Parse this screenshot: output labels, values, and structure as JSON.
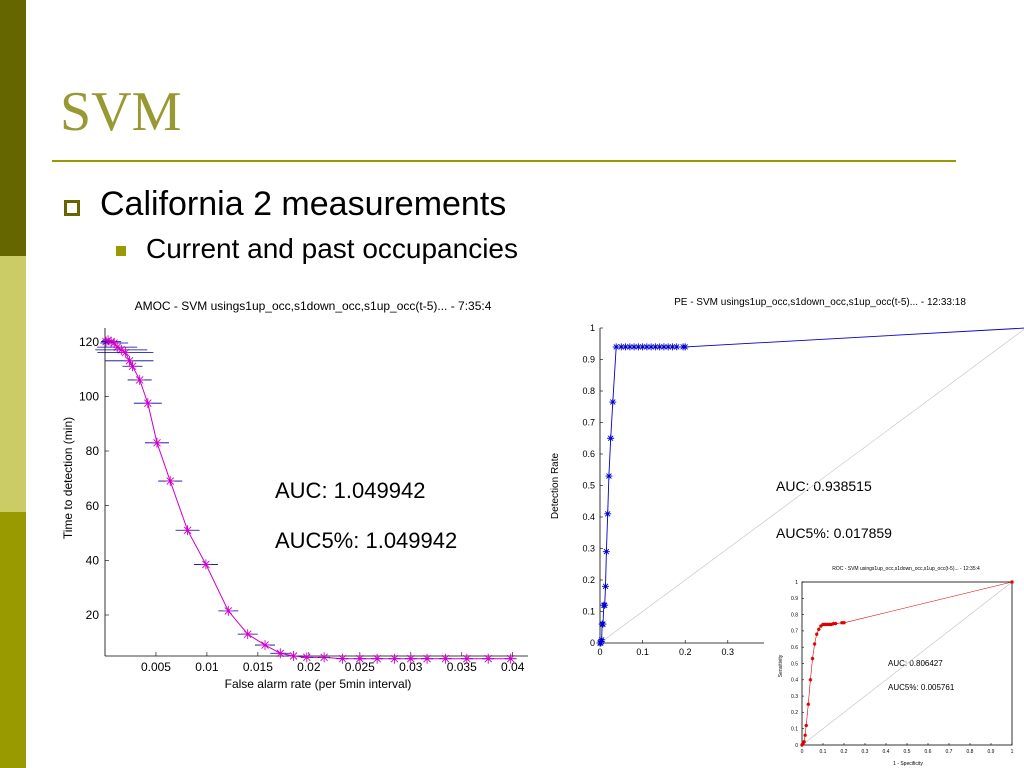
{
  "slide": {
    "title": "SVM",
    "bullet1": "California 2 measurements",
    "bullet2": "Current and past occupancies",
    "colors": {
      "title": "#999933",
      "rule": "#999900",
      "sidebar_top": "#666600",
      "sidebar_mid": "#cccc66",
      "sidebar_bot": "#999900"
    }
  },
  "chart_data": [
    {
      "type": "line",
      "title": "AMOC - SVM usings1up_occ,s1down_occ,s1up_occ(t-5)... - 7:35:4",
      "xlabel": "False alarm rate (per 5min interval)",
      "ylabel": "Time to detection (min)",
      "xticks": [
        "0.005",
        "0.01",
        "0.015",
        "0.02",
        "0.025",
        "0.03",
        "0.035",
        "0.04"
      ],
      "yticks": [
        "20",
        "40",
        "60",
        "80",
        "100",
        "120"
      ],
      "xlim": [
        0,
        0.0415
      ],
      "ylim": [
        5,
        125
      ],
      "color": "#cc00cc",
      "errcolor": "#000099",
      "annotations": [
        "AUC: 1.049942",
        "AUC5%: 1.049942"
      ],
      "series": [
        {
          "x": [
            0.0001,
            0.0003,
            0.0006,
            0.0009,
            0.0012,
            0.0016,
            0.002,
            0.0024,
            0.0027,
            0.0034,
            0.0042,
            0.0051,
            0.0064,
            0.0081,
            0.0099,
            0.0121,
            0.014,
            0.0157,
            0.0172,
            0.0185,
            0.0198,
            0.0215,
            0.0233,
            0.025,
            0.0267,
            0.0284,
            0.03,
            0.0316,
            0.0334,
            0.0355,
            0.0376,
            0.0398
          ],
          "y": [
            120,
            120.5,
            120,
            119.5,
            118,
            117,
            116,
            113,
            111,
            106,
            97.5,
            83,
            69,
            51,
            38.5,
            21.5,
            13,
            9,
            6,
            5,
            4.5,
            4.5,
            4,
            4,
            4,
            4,
            4,
            4,
            4,
            4,
            4,
            4
          ]
        }
      ]
    },
    {
      "type": "line",
      "title": "PE - SVM usings1up_occ,s1down_occ,s1up_occ(t-5)... - 12:33:18",
      "xlabel": "",
      "ylabel": "Detection Rate",
      "xticks": [
        "0",
        "0.1",
        "0.2",
        "0.3"
      ],
      "yticks": [
        "0",
        "0.1",
        "0.2",
        "0.3",
        "0.4",
        "0.5",
        "0.6",
        "0.7",
        "0.8",
        "0.9",
        "1"
      ],
      "xlim": [
        0,
        1
      ],
      "ylim": [
        0,
        1
      ],
      "color": "#0000cc",
      "annotations": [
        "AUC: 0.938515",
        "AUC5%: 0.017859"
      ],
      "series": [
        {
          "x": [
            0,
            0.001,
            0.002,
            0.003,
            0.004,
            0.005,
            0.007,
            0.009,
            0.011,
            0.013,
            0.015,
            0.018,
            0.021,
            0.025,
            0.03,
            0.038,
            0.05,
            0.06,
            0.07,
            0.08,
            0.09,
            0.1,
            0.11,
            0.12,
            0.13,
            0.14,
            0.15,
            0.16,
            0.17,
            0.18,
            0.195,
            0.2,
            1.0
          ],
          "y": [
            0,
            0,
            0,
            0.005,
            0.01,
            0.06,
            0.06,
            0.12,
            0.12,
            0.18,
            0.29,
            0.41,
            0.53,
            0.65,
            0.765,
            0.94,
            0.94,
            0.94,
            0.94,
            0.94,
            0.94,
            0.94,
            0.94,
            0.94,
            0.94,
            0.94,
            0.94,
            0.94,
            0.94,
            0.94,
            0.94,
            0.94,
            1.0
          ]
        }
      ]
    },
    {
      "type": "line",
      "title": "ROC - SVM usings1up_occ,s1down_occ,s1up_occ(t-5)... - 12:35:4",
      "xlabel": "1 - Specificity",
      "ylabel": "Sensitivity",
      "xticks": [
        "0",
        "0.1",
        "0.2",
        "0.3",
        "0.4",
        "0.5",
        "0.6",
        "0.7",
        "0.8",
        "0.9",
        "1"
      ],
      "yticks": [
        "0",
        "0.1",
        "0.2",
        "0.3",
        "0.4",
        "0.5",
        "0.6",
        "0.7",
        "0.8",
        "0.9",
        "1"
      ],
      "xlim": [
        0,
        1
      ],
      "ylim": [
        0,
        1
      ],
      "color": "#dd0000",
      "annotations": [
        "AUC: 0.806427",
        "AUC5%: 0.005761"
      ],
      "series": [
        {
          "x": [
            0,
            0.005,
            0.01,
            0.015,
            0.02,
            0.03,
            0.04,
            0.05,
            0.06,
            0.07,
            0.08,
            0.09,
            0.1,
            0.11,
            0.12,
            0.13,
            0.14,
            0.15,
            0.16,
            0.19,
            0.2,
            1.0
          ],
          "y": [
            0,
            0.01,
            0.02,
            0.06,
            0.12,
            0.25,
            0.4,
            0.53,
            0.62,
            0.68,
            0.71,
            0.73,
            0.74,
            0.74,
            0.74,
            0.74,
            0.74,
            0.745,
            0.745,
            0.75,
            0.75,
            1.0
          ]
        }
      ]
    }
  ]
}
